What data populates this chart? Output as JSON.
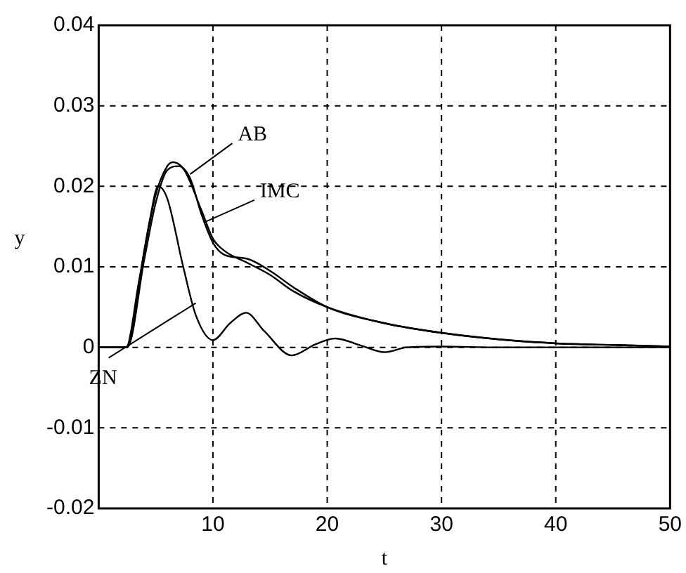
{
  "chart_data": {
    "type": "line",
    "xlabel": "t",
    "ylabel": "y",
    "xlim": [
      0,
      50
    ],
    "ylim": [
      -0.02,
      0.04
    ],
    "xticks": [
      {
        "value": 0,
        "label": null
      },
      10,
      20,
      30,
      40,
      50
    ],
    "yticks": [
      -0.02,
      -0.01,
      0,
      0.01,
      0.02,
      0.03,
      0.04
    ],
    "grid": true,
    "legend": false,
    "marker": "none",
    "line_style": "solid",
    "annotations": [
      {
        "text": "AB",
        "x": 8,
        "y": 0.0215
      },
      {
        "text": "IMC",
        "x": 9.2,
        "y": 0.0155
      },
      {
        "text": "ZN",
        "x": 8.5,
        "y": 0.0055
      }
    ],
    "series": [
      {
        "color": "#000000",
        "x": [
          0,
          2.5,
          4,
          5,
          6,
          6.5,
          7.5,
          9,
          10,
          11,
          13,
          15,
          17,
          20,
          25,
          30,
          35,
          40,
          45,
          50
        ],
        "values": [
          0,
          0,
          0.012,
          0.019,
          0.0225,
          0.023,
          0.022,
          0.017,
          0.0135,
          0.012,
          0.0105,
          0.009,
          0.007,
          0.005,
          0.003,
          0.0018,
          0.001,
          0.0005,
          0.0003,
          0.0001
        ]
      },
      {
        "color": "#000000",
        "x": [
          0,
          2.5,
          4,
          5,
          6,
          7,
          8,
          9,
          10,
          11,
          13,
          15,
          17,
          20,
          25,
          30,
          35,
          40,
          45,
          50
        ],
        "values": [
          0,
          0,
          0.011,
          0.018,
          0.022,
          0.0225,
          0.021,
          0.0165,
          0.013,
          0.0115,
          0.011,
          0.0095,
          0.0075,
          0.005,
          0.003,
          0.0018,
          0.001,
          0.0005,
          0.0003,
          0.0001
        ]
      },
      {
        "color": "#000000",
        "x": [
          0,
          2.4,
          3.5,
          4.5,
          5.2,
          6,
          7.4,
          8.5,
          10,
          11.5,
          12.9,
          14.5,
          16.9,
          19,
          20.7,
          23,
          25,
          27,
          30,
          35,
          40,
          45,
          50
        ],
        "values": [
          0,
          0,
          0.008,
          0.016,
          0.02,
          0.0185,
          0.01,
          0.004,
          0.0009,
          0.003,
          0.0043,
          0.002,
          -0.001,
          0.0004,
          0.0011,
          0.0002,
          -0.0006,
          0,
          0.0001,
          0,
          0,
          0,
          0
        ]
      }
    ]
  }
}
